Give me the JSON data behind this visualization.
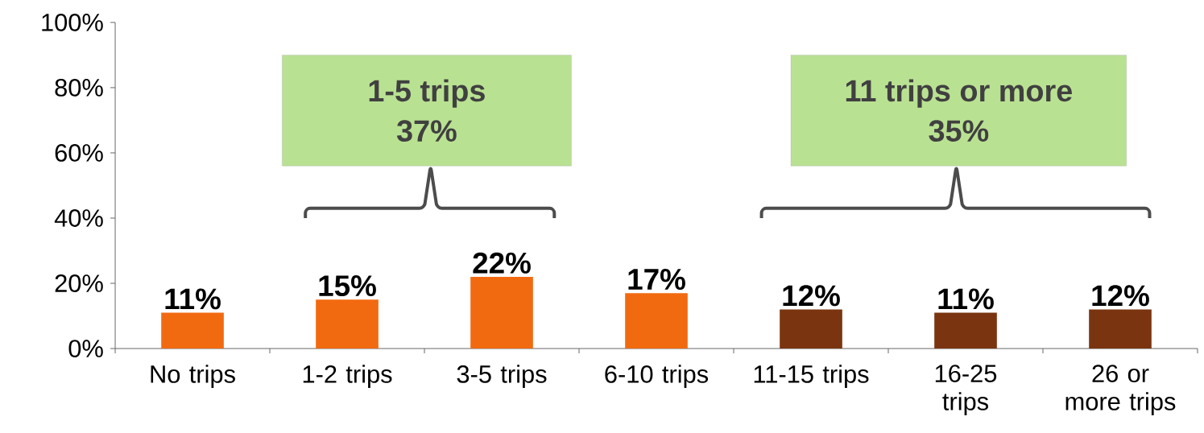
{
  "chart_data": {
    "type": "bar",
    "categories": [
      "No trips",
      "1-2 trips",
      "3-5 trips",
      "6-10 trips",
      "11-15 trips",
      "16-25 trips",
      "26 or more trips"
    ],
    "values": [
      11,
      15,
      22,
      17,
      12,
      11,
      12
    ],
    "value_labels": [
      "11%",
      "15%",
      "22%",
      "17%",
      "12%",
      "11%",
      "12%"
    ],
    "colors": [
      "#f26a10",
      "#f26a10",
      "#f26a10",
      "#f26a10",
      "#7a3510",
      "#7a3510",
      "#7a3510"
    ],
    "ylim": [
      0,
      100
    ],
    "yticks": [
      {
        "value": 0,
        "label": "0%"
      },
      {
        "value": 20,
        "label": "20%"
      },
      {
        "value": 40,
        "label": "40%"
      },
      {
        "value": 60,
        "label": "60%"
      },
      {
        "value": 80,
        "label": "80%"
      },
      {
        "value": 100,
        "label": "100%"
      }
    ],
    "annotations": [
      "1-5 trips",
      "37%",
      "11 trips or more",
      "35%"
    ]
  }
}
